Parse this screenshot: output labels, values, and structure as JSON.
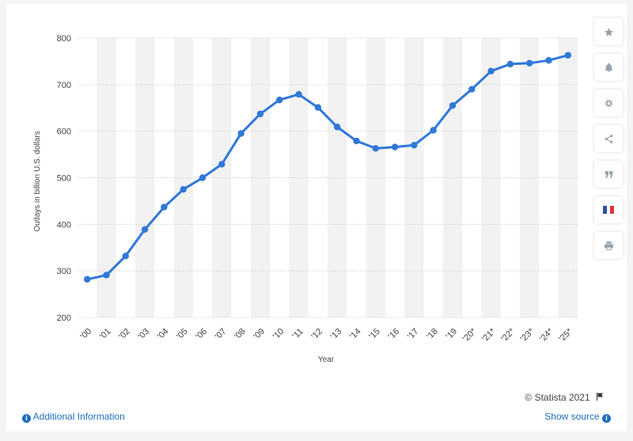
{
  "chart_data": {
    "type": "line",
    "x": [
      "'00",
      "'01",
      "'02",
      "'03",
      "'04",
      "'05",
      "'06",
      "'07",
      "'08",
      "'09",
      "'10",
      "'11",
      "'12",
      "'13",
      "'14",
      "'15",
      "'16",
      "'17",
      "'18",
      "'19",
      "'20*",
      "'21*",
      "'22*",
      "'23*",
      "'24*",
      "'25*"
    ],
    "series": [
      {
        "values": [
          282,
          291,
          332,
          389,
          437,
          475,
          500,
          529,
          595,
          637,
          667,
          679,
          651,
          609,
          579,
          563,
          566,
          570,
          602,
          655,
          690,
          729,
          744,
          746,
          752,
          763
        ]
      }
    ],
    "xlabel": "Year",
    "ylabel": "Outlays in billion U.S. dollars",
    "ylim": [
      200,
      800
    ],
    "yticks": [
      200,
      300,
      400,
      500,
      600,
      700,
      800
    ],
    "line_color": "#2f78d7",
    "band_color": "#f2f2f2",
    "grid": true
  },
  "footer": {
    "additional_info": "Additional Information",
    "show_source": "Show source",
    "copyright": "© Statista 2021"
  },
  "sidebar_icons": [
    "star-icon",
    "bell-icon",
    "gear-icon",
    "share-icon",
    "quote-icon",
    "french-flag-icon",
    "print-icon"
  ]
}
